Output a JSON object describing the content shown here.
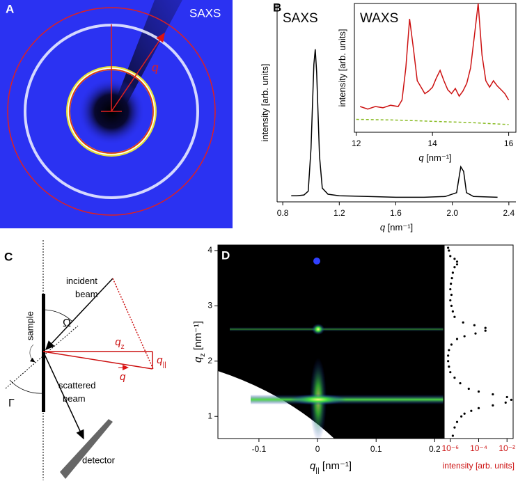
{
  "panel_labels": [
    "A",
    "B",
    "C",
    "D"
  ],
  "panel_a": {
    "label": "SAXS",
    "vector": "q"
  },
  "diagram": {
    "incident_beam": [
      "incident",
      "beam"
    ],
    "omega": "Ω",
    "sample": "sample",
    "q_z": {
      "text": "q",
      "sub": "z"
    },
    "q_par": {
      "text": "q",
      "sub": "||"
    },
    "q_vec": "q",
    "gamma": "Γ",
    "scattered_beam": [
      "scattered",
      "beam"
    ],
    "detector": "detector"
  },
  "chart_data": [
    {
      "type": "line",
      "title": "SAXS",
      "x_label": {
        "text": "q",
        "unit": " [nm⁻¹]"
      },
      "y_label": {
        "unit": "intensity [arb. units]"
      },
      "xlim": [
        0.76,
        2.45
      ],
      "xticks": [
        0.8,
        1.2,
        1.6,
        {
          "value": 2.0,
          "label": "2.0"
        },
        2.4
      ],
      "ylim": [
        0,
        1.3
      ],
      "series": [
        {
          "color": "#000000",
          "x": [
            0.86,
            0.9,
            0.95,
            0.98,
            1.0,
            1.02,
            1.03,
            1.04,
            1.06,
            1.08,
            1.12,
            1.2,
            1.4,
            1.6,
            1.8,
            1.95,
            2.03,
            2.06,
            2.08,
            2.1,
            2.15,
            2.32
          ],
          "values": [
            0.04,
            0.04,
            0.045,
            0.07,
            0.35,
            0.9,
            1.0,
            0.85,
            0.3,
            0.09,
            0.05,
            0.04,
            0.035,
            0.03,
            0.03,
            0.035,
            0.06,
            0.23,
            0.2,
            0.06,
            0.035,
            0.03
          ]
        }
      ]
    },
    {
      "type": "line",
      "title": "WAXS",
      "x_label": {
        "text": "q",
        "unit": " [nm⁻¹]"
      },
      "y_label": {
        "unit": "intensity [arb. units]"
      },
      "xlim": [
        11.95,
        16.19
      ],
      "xticks": [
        12,
        14,
        16
      ],
      "ylim": [
        0,
        1
      ],
      "series": [
        {
          "color": "#cc1111",
          "x": [
            12.1,
            12.3,
            12.5,
            12.7,
            12.9,
            13.1,
            13.2,
            13.3,
            13.4,
            13.5,
            13.6,
            13.7,
            13.8,
            13.9,
            14.0,
            14.1,
            14.2,
            14.3,
            14.4,
            14.5,
            14.6,
            14.7,
            14.8,
            14.9,
            15.0,
            15.1,
            15.2,
            15.3,
            15.4,
            15.5,
            15.6,
            15.7,
            15.8,
            15.9,
            16.0
          ],
          "values": [
            0.2,
            0.18,
            0.2,
            0.19,
            0.21,
            0.2,
            0.25,
            0.5,
            0.88,
            0.65,
            0.4,
            0.35,
            0.3,
            0.32,
            0.35,
            0.42,
            0.48,
            0.4,
            0.33,
            0.3,
            0.34,
            0.28,
            0.32,
            0.38,
            0.5,
            0.75,
            1.0,
            0.6,
            0.4,
            0.35,
            0.4,
            0.36,
            0.33,
            0.3,
            0.25
          ]
        },
        {
          "color": "#88bb22",
          "style": "dashed",
          "x": [
            12,
            13,
            14,
            15,
            16
          ],
          "values": [
            0.1,
            0.095,
            0.085,
            0.075,
            0.06
          ]
        }
      ]
    },
    {
      "type": "image",
      "x_label": {
        "text": "q",
        "sub": "||",
        "unit": " [nm⁻¹]"
      },
      "y_label": {
        "text": "q",
        "sub": "z",
        "unit": " [nm⁻¹]"
      },
      "xlim": [
        -0.17,
        0.215
      ],
      "xticks": [
        -0.1,
        0,
        0.1,
        0.2
      ],
      "ylim": [
        0.6,
        4.1
      ],
      "yticks": [
        1,
        2,
        3,
        4
      ]
    },
    {
      "type": "scatter",
      "x_scale": "log",
      "color": "#000000",
      "label_color": "#cc1111",
      "x_label": {
        "unit": "intensity [arb. units]"
      },
      "xlim": [
        3.7e-07,
        0.027
      ],
      "xticks": [
        {
          "value": 1e-06,
          "label": "10⁻⁶"
        },
        {
          "value": 0.0001,
          "label": "10⁻⁴"
        },
        {
          "value": 0.01,
          "label": "10⁻²"
        }
      ],
      "ylim": [
        0.6,
        4.1
      ],
      "x": [
        1.5e-06,
        2e-06,
        3e-06,
        6e-06,
        1e-05,
        3e-05,
        0.0001,
        0.001,
        0.008,
        0.02,
        0.01,
        0.001,
        0.0001,
        2e-05,
        5e-06,
        2e-06,
        1e-06,
        8e-07,
        7e-07,
        7e-07,
        8e-07,
        1.2e-06,
        3e-06,
        1e-05,
        6e-05,
        0.0003,
        0.0003,
        5e-05,
        8e-06,
        2e-06,
        1.5e-06,
        1.2e-06,
        1e-06,
        1.2e-06,
        1e-06,
        1.1e-06,
        1.3e-06,
        1.5e-06,
        2e-06,
        3e-06,
        3e-06,
        2e-06,
        1e-06,
        8e-07,
        7e-07
      ],
      "values": [
        0.65,
        0.8,
        0.9,
        1.0,
        1.05,
        1.1,
        1.15,
        1.2,
        1.25,
        1.3,
        1.35,
        1.4,
        1.45,
        1.5,
        1.6,
        1.7,
        1.8,
        1.9,
        2.0,
        2.1,
        2.2,
        2.3,
        2.4,
        2.45,
        2.5,
        2.55,
        2.6,
        2.65,
        2.7,
        2.8,
        2.9,
        3.0,
        3.1,
        3.2,
        3.3,
        3.4,
        3.5,
        3.6,
        3.7,
        3.75,
        3.8,
        3.85,
        3.9,
        4.0,
        4.05
      ]
    }
  ]
}
